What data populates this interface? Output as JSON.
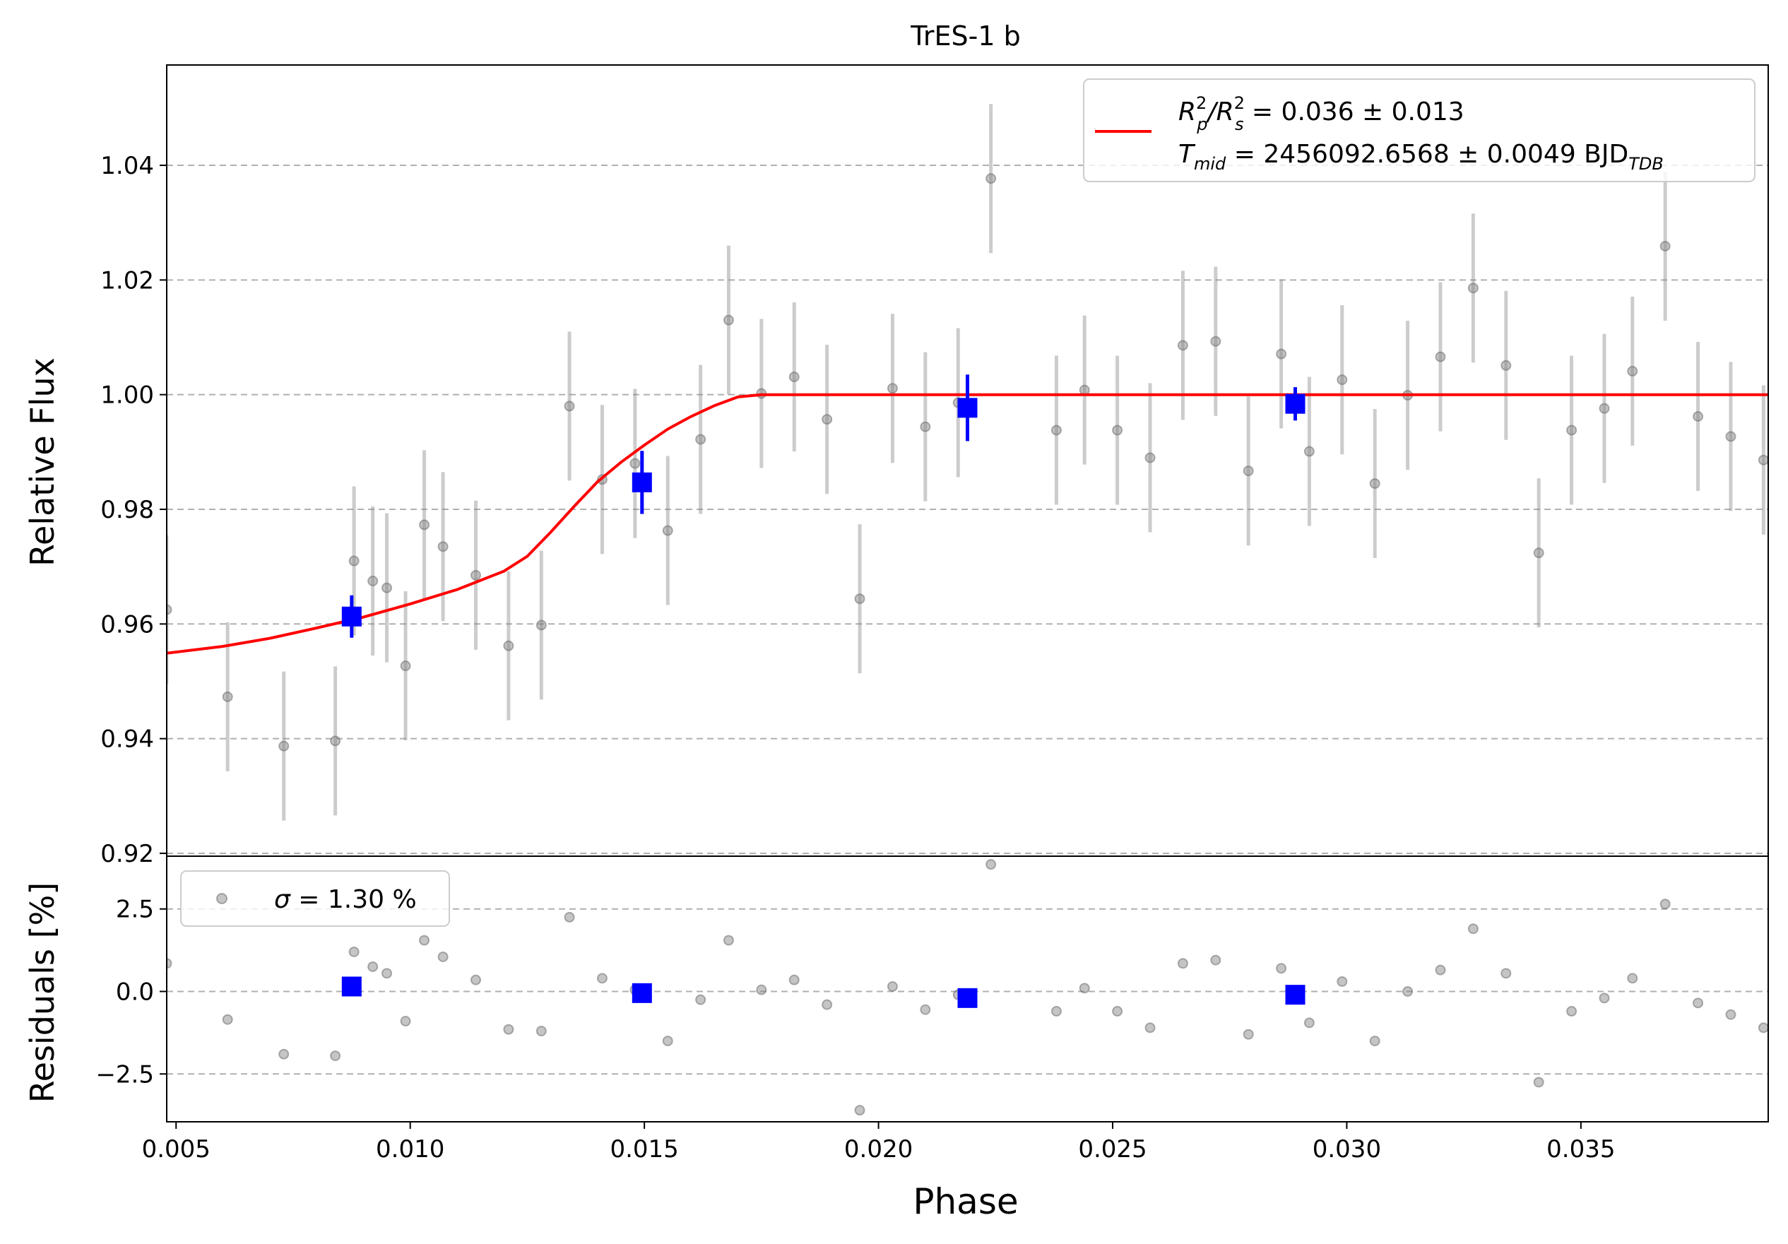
{
  "chart_data": [
    {
      "type": "scatter",
      "panel": "main",
      "title": "TrES-1 b",
      "xlabel": "",
      "ylabel": "Relative Flux",
      "xlim": [
        0.0048,
        0.039
      ],
      "ylim": [
        0.9195,
        1.0575
      ],
      "yticks": [
        0.92,
        0.94,
        0.96,
        0.98,
        1.0,
        1.02,
        1.04
      ],
      "ytick_labels": [
        "0.92",
        "0.94",
        "0.96",
        "0.98",
        "1.00",
        "1.02",
        "1.04"
      ],
      "grid": "y-dashed",
      "legend": {
        "placement": "top-right",
        "line1": "R²p/R²s = 0.036 ± 0.013",
        "line2": "Tmid = 2456092.6568 ± 0.0049 BJDTDB",
        "line1_parts": {
          "pre": "R",
          "sup1": "2",
          "sub1": "p",
          "mid": "/R",
          "sup2": "2",
          "sub2": "s",
          "post": " = 0.036 ± 0.013"
        },
        "line2_parts": {
          "pre": "T",
          "sub": "mid",
          "post": " = 2456092.6568 ± 0.0049 BJD",
          "sub2": "TDB"
        }
      },
      "series": [
        {
          "name": "data",
          "style": "gray circles with error bars",
          "x": [
            0.0048,
            0.0061,
            0.0073,
            0.0084,
            0.0088,
            0.0092,
            0.0095,
            0.0099,
            0.0103,
            0.0107,
            0.0114,
            0.0121,
            0.0128,
            0.0134,
            0.0141,
            0.0148,
            0.0155,
            0.0162,
            0.0168,
            0.0175,
            0.0182,
            0.0189,
            0.0196,
            0.0203,
            0.021,
            0.0217,
            0.0224,
            0.0238,
            0.0244,
            0.0251,
            0.0258,
            0.0265,
            0.0272,
            0.0279,
            0.0286,
            0.0292,
            0.0299,
            0.0306,
            0.0313,
            0.032,
            0.0327,
            0.0334,
            0.0341,
            0.0348,
            0.0355,
            0.0361,
            0.0368,
            0.0375,
            0.0382,
            0.0389
          ],
          "y": [
            0.9625,
            0.9473,
            0.9387,
            0.9396,
            0.971,
            0.9675,
            0.9663,
            0.9527,
            0.9773,
            0.9735,
            0.9685,
            0.9562,
            0.9598,
            0.998,
            0.9852,
            0.988,
            0.9763,
            0.9922,
            1.013,
            1.0002,
            1.0031,
            0.9957,
            0.9644,
            1.0011,
            0.9944,
            0.9986,
            1.0377,
            0.9938,
            1.0008,
            0.9938,
            0.989,
            1.0086,
            1.0093,
            0.9867,
            1.0071,
            0.9901,
            1.0026,
            0.9845,
            0.9999,
            1.0066,
            1.0186,
            1.0051,
            0.9724,
            0.9938,
            0.9976,
            1.0041,
            1.0259,
            0.9962,
            0.9927,
            0.9886
          ],
          "yerr": 0.013
        },
        {
          "name": "binned",
          "style": "blue squares",
          "x": [
            0.00875,
            0.01495,
            0.0219,
            0.0289
          ],
          "y": [
            0.9613,
            0.9847,
            0.9977,
            0.9984
          ],
          "yerr": [
            0.0037,
            0.0055,
            0.0058,
            0.0029
          ]
        },
        {
          "name": "model",
          "style": "red line",
          "x": [
            0.0048,
            0.006,
            0.007,
            0.008,
            0.009,
            0.01,
            0.011,
            0.012,
            0.0125,
            0.013,
            0.0135,
            0.014,
            0.0145,
            0.015,
            0.0155,
            0.016,
            0.0165,
            0.017,
            0.0175,
            0.018,
            0.039
          ],
          "y": [
            0.9549,
            0.9561,
            0.9575,
            0.9593,
            0.9612,
            0.9635,
            0.966,
            0.9692,
            0.9718,
            0.976,
            0.9805,
            0.9848,
            0.9882,
            0.9912,
            0.994,
            0.9962,
            0.9981,
            0.9996,
            1.0,
            1.0,
            1.0
          ]
        }
      ]
    },
    {
      "type": "scatter",
      "panel": "residuals",
      "xlabel": "Phase",
      "ylabel": "Residuals [%]",
      "xlim": [
        0.0048,
        0.039
      ],
      "ylim": [
        -3.95,
        4.1
      ],
      "xticks": [
        0.005,
        0.01,
        0.015,
        0.02,
        0.025,
        0.03,
        0.035
      ],
      "xtick_labels": [
        "0.005",
        "0.010",
        "0.015",
        "0.020",
        "0.025",
        "0.030",
        "0.035"
      ],
      "yticks": [
        -2.5,
        0.0,
        2.5
      ],
      "ytick_labels": [
        "−2.5",
        "0.0",
        "2.5"
      ],
      "grid": "y-dashed",
      "legend": {
        "placement": "top-left",
        "label": "σ = 1.30 %",
        "symbol": "σ",
        "text": " = 1.30 %"
      },
      "series": [
        {
          "name": "residuals",
          "style": "gray circles",
          "x": [
            0.0048,
            0.0061,
            0.0073,
            0.0084,
            0.0088,
            0.0092,
            0.0095,
            0.0099,
            0.0103,
            0.0107,
            0.0114,
            0.0121,
            0.0128,
            0.0134,
            0.0141,
            0.0148,
            0.0155,
            0.0162,
            0.0168,
            0.0175,
            0.0182,
            0.0189,
            0.0196,
            0.0203,
            0.021,
            0.0217,
            0.0224,
            0.0238,
            0.0244,
            0.0251,
            0.0258,
            0.0265,
            0.0272,
            0.0279,
            0.0286,
            0.0292,
            0.0299,
            0.0306,
            0.0313,
            0.032,
            0.0327,
            0.0334,
            0.0341,
            0.0348,
            0.0355,
            0.0361,
            0.0368,
            0.0375,
            0.0382,
            0.0389
          ],
          "y": [
            0.85,
            -0.85,
            -1.9,
            -1.95,
            1.2,
            0.75,
            0.55,
            -0.9,
            1.55,
            1.05,
            0.35,
            -1.15,
            -1.2,
            2.25,
            0.4,
            0.05,
            -1.5,
            -0.25,
            1.55,
            0.05,
            0.35,
            -0.4,
            -3.6,
            0.15,
            -0.55,
            -0.1,
            3.85,
            -0.6,
            0.1,
            -0.6,
            -1.1,
            0.85,
            0.95,
            -1.3,
            0.7,
            -0.95,
            0.3,
            -1.5,
            0.0,
            0.65,
            1.9,
            0.55,
            -2.75,
            -0.6,
            -0.2,
            0.4,
            2.65,
            -0.35,
            -0.7,
            -1.1
          ]
        },
        {
          "name": "binned",
          "style": "blue squares",
          "x": [
            0.00875,
            0.01495,
            0.0219,
            0.0289
          ],
          "y": [
            0.15,
            -0.05,
            -0.2,
            -0.1
          ]
        }
      ]
    }
  ],
  "colors": {
    "data": "#7f7f7f",
    "data_err": "#c8c8c8",
    "binned": "#0000ff",
    "model": "#ff0000",
    "grid": "#b0b0b0"
  }
}
